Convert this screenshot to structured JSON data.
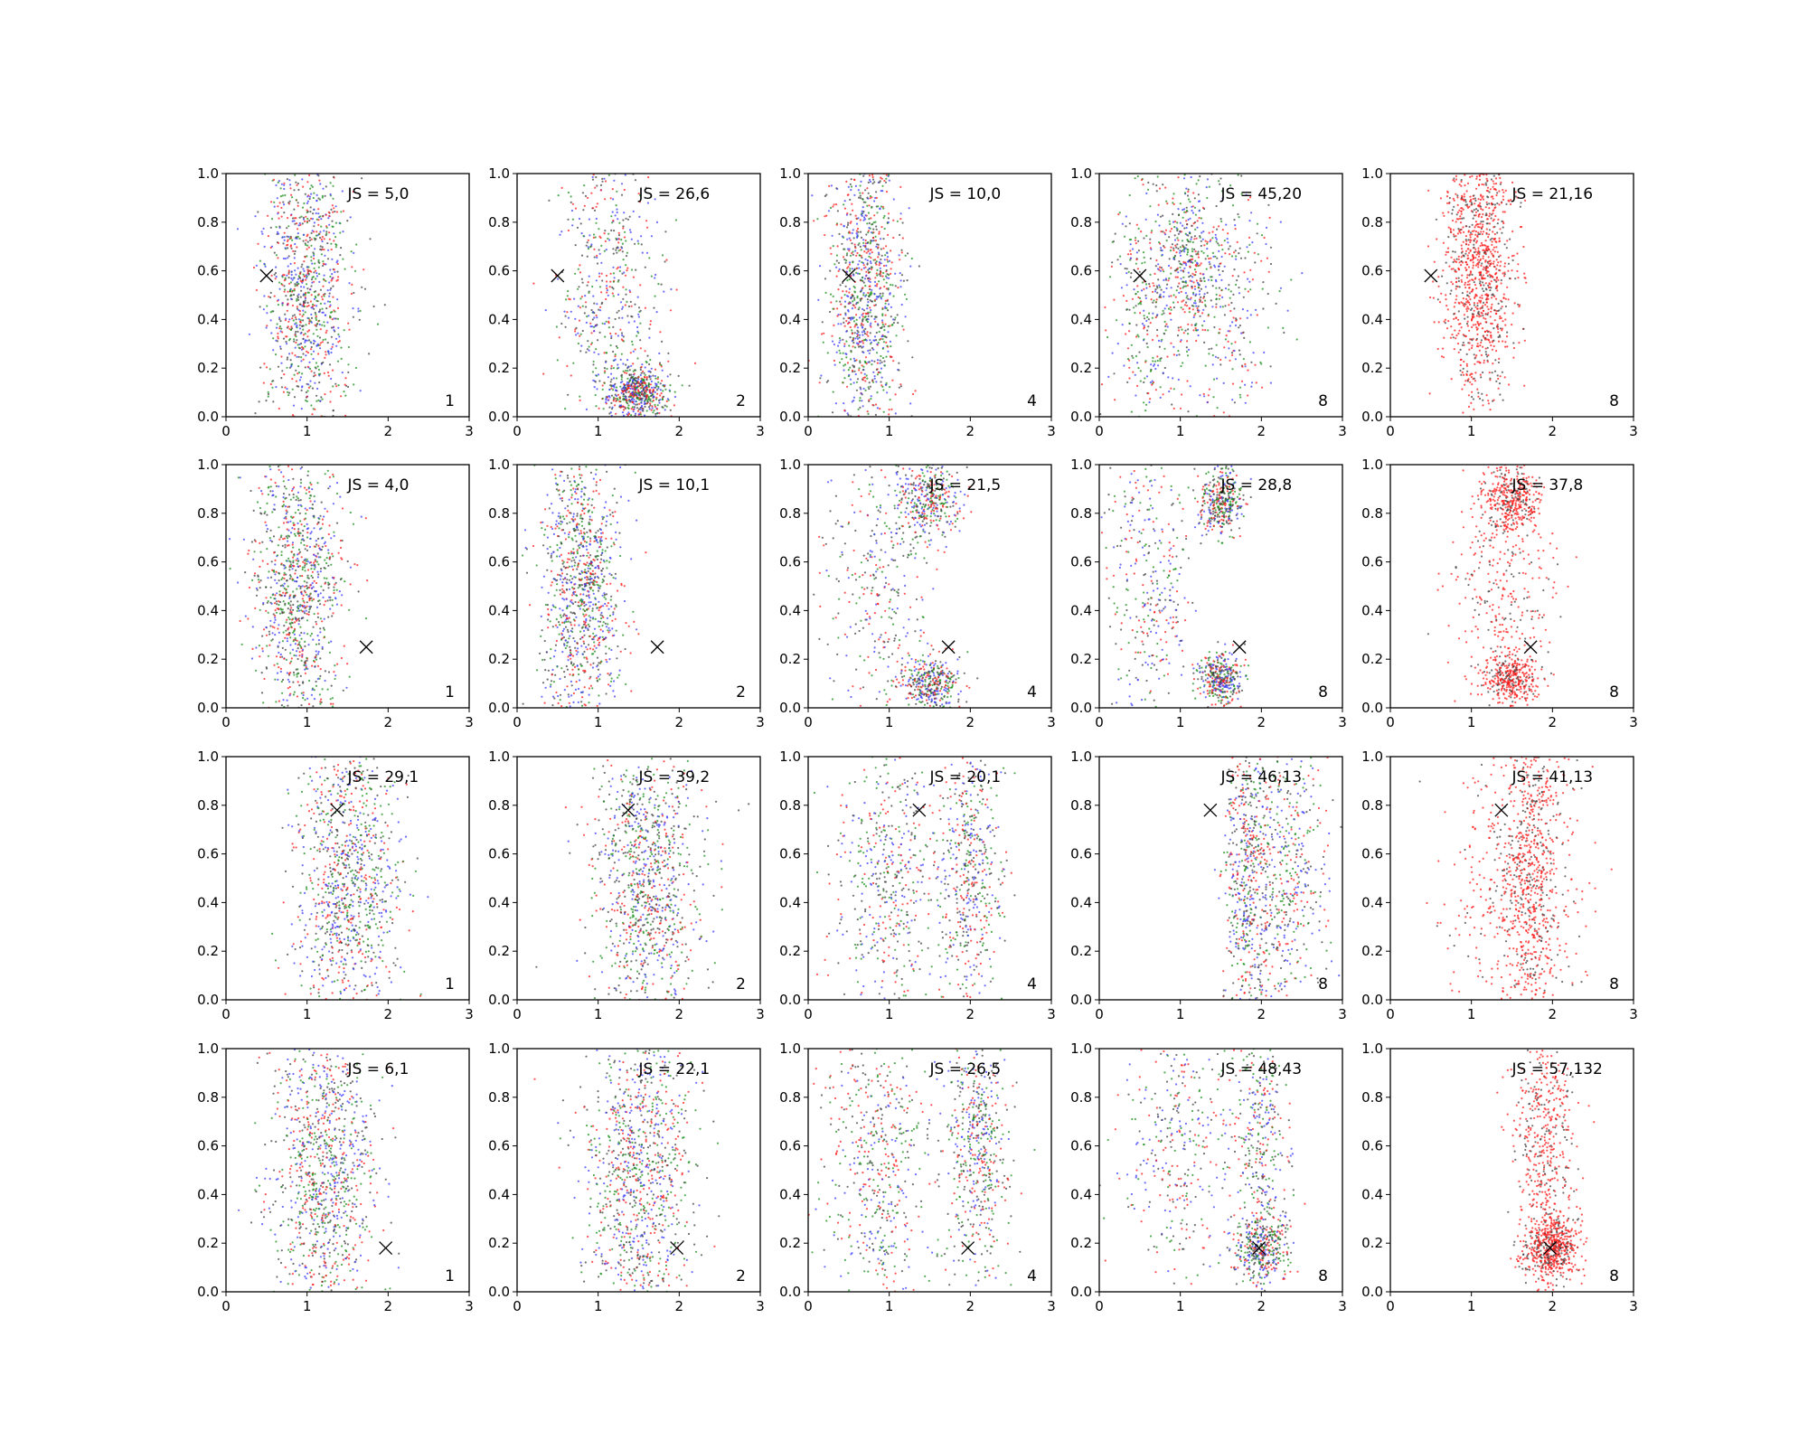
{
  "chart_data": {
    "type": "scatter",
    "layout": {
      "rows": 4,
      "cols": 5
    },
    "xlim": [
      0,
      3
    ],
    "ylim": [
      0,
      1
    ],
    "xticks": [
      "0",
      "1",
      "2",
      "3"
    ],
    "yticks": [
      "0.0",
      "0.2",
      "0.4",
      "0.6",
      "0.8",
      "1.0"
    ],
    "grid": false,
    "legend": "none",
    "colors": {
      "blue": "#3b3bff",
      "green": "#1a8f1a",
      "red": "#ff1a1a",
      "black": "#404040",
      "marker": "#000000"
    },
    "panels": [
      {
        "row": 0,
        "col": 0,
        "label": "JS = 5,0",
        "count": "1",
        "marker": [
          0.5,
          0.58
        ],
        "mix": [
          "blue",
          "green",
          "red",
          "black"
        ],
        "clusters": [
          {
            "cx": 1.0,
            "cy": 0.5,
            "sx": 0.5,
            "sy": 0.6
          }
        ]
      },
      {
        "row": 0,
        "col": 1,
        "label": "JS = 26,6",
        "count": "2",
        "marker": [
          0.5,
          0.58
        ],
        "mix": [
          "blue",
          "green",
          "red",
          "black"
        ],
        "clusters": [
          {
            "cx": 1.1,
            "cy": 0.55,
            "sx": 0.55,
            "sy": 0.6
          },
          {
            "cx": 1.5,
            "cy": 0.1,
            "sx": 0.35,
            "sy": 0.1
          }
        ]
      },
      {
        "row": 0,
        "col": 2,
        "label": "JS = 10,0",
        "count": "4",
        "marker": [
          0.5,
          0.58
        ],
        "mix": [
          "blue",
          "green",
          "red",
          "black"
        ],
        "clusters": [
          {
            "cx": 0.7,
            "cy": 0.5,
            "sx": 0.4,
            "sy": 0.6
          }
        ]
      },
      {
        "row": 0,
        "col": 3,
        "label": "JS = 45,20",
        "count": "8",
        "marker": [
          0.5,
          0.58
        ],
        "mix": [
          "blue",
          "green",
          "red",
          "black"
        ],
        "clusters": [
          {
            "cx": 0.6,
            "cy": 0.5,
            "sx": 0.4,
            "sy": 0.6
          },
          {
            "cx": 1.1,
            "cy": 0.65,
            "sx": 0.3,
            "sy": 0.35
          },
          {
            "cx": 1.6,
            "cy": 0.5,
            "sx": 0.6,
            "sy": 0.6
          }
        ]
      },
      {
        "row": 0,
        "col": 4,
        "label": "JS = 21,16",
        "count": "8",
        "marker": [
          0.5,
          0.58
        ],
        "mix": [
          "red",
          "red",
          "red",
          "black"
        ],
        "clusters": [
          {
            "cx": 1.1,
            "cy": 0.6,
            "sx": 0.4,
            "sy": 0.5
          }
        ]
      },
      {
        "row": 1,
        "col": 0,
        "label": "JS = 4,0",
        "count": "1",
        "marker": [
          1.73,
          0.25
        ],
        "mix": [
          "blue",
          "green",
          "red",
          "black"
        ],
        "clusters": [
          {
            "cx": 0.9,
            "cy": 0.5,
            "sx": 0.5,
            "sy": 0.6
          }
        ]
      },
      {
        "row": 1,
        "col": 1,
        "label": "JS = 10,1",
        "count": "2",
        "marker": [
          1.73,
          0.25
        ],
        "mix": [
          "blue",
          "green",
          "red",
          "black"
        ],
        "clusters": [
          {
            "cx": 0.8,
            "cy": 0.5,
            "sx": 0.45,
            "sy": 0.6
          }
        ]
      },
      {
        "row": 1,
        "col": 2,
        "label": "JS = 21,5",
        "count": "4",
        "marker": [
          1.73,
          0.25
        ],
        "mix": [
          "blue",
          "green",
          "red",
          "black"
        ],
        "clusters": [
          {
            "cx": 0.9,
            "cy": 0.5,
            "sx": 0.6,
            "sy": 0.6
          },
          {
            "cx": 1.5,
            "cy": 0.85,
            "sx": 0.35,
            "sy": 0.15
          },
          {
            "cx": 1.5,
            "cy": 0.1,
            "sx": 0.35,
            "sy": 0.1
          }
        ]
      },
      {
        "row": 1,
        "col": 3,
        "label": "JS = 28,8",
        "count": "8",
        "marker": [
          1.73,
          0.25
        ],
        "mix": [
          "blue",
          "green",
          "red",
          "black"
        ],
        "clusters": [
          {
            "cx": 0.6,
            "cy": 0.5,
            "sx": 0.5,
            "sy": 0.6
          },
          {
            "cx": 1.5,
            "cy": 0.85,
            "sx": 0.25,
            "sy": 0.12
          },
          {
            "cx": 1.5,
            "cy": 0.12,
            "sx": 0.25,
            "sy": 0.1
          }
        ]
      },
      {
        "row": 1,
        "col": 4,
        "label": "JS = 37,8",
        "count": "8",
        "marker": [
          1.73,
          0.25
        ],
        "mix": [
          "red",
          "red",
          "red",
          "black"
        ],
        "clusters": [
          {
            "cx": 1.5,
            "cy": 0.85,
            "sx": 0.3,
            "sy": 0.12
          },
          {
            "cx": 1.5,
            "cy": 0.12,
            "sx": 0.3,
            "sy": 0.1
          },
          {
            "cx": 1.4,
            "cy": 0.5,
            "sx": 0.6,
            "sy": 0.5
          }
        ]
      },
      {
        "row": 2,
        "col": 0,
        "label": "JS = 29,1",
        "count": "1",
        "marker": [
          1.37,
          0.78
        ],
        "mix": [
          "blue",
          "green",
          "red",
          "black"
        ],
        "clusters": [
          {
            "cx": 1.5,
            "cy": 0.5,
            "sx": 0.6,
            "sy": 0.6
          }
        ]
      },
      {
        "row": 2,
        "col": 1,
        "label": "JS = 39,2",
        "count": "2",
        "marker": [
          1.37,
          0.78
        ],
        "mix": [
          "blue",
          "green",
          "red",
          "black"
        ],
        "clusters": [
          {
            "cx": 1.6,
            "cy": 0.5,
            "sx": 0.6,
            "sy": 0.6
          }
        ]
      },
      {
        "row": 2,
        "col": 2,
        "label": "JS = 20,1",
        "count": "4",
        "marker": [
          1.37,
          0.78
        ],
        "mix": [
          "blue",
          "green",
          "red",
          "black"
        ],
        "clusters": [
          {
            "cx": 1.0,
            "cy": 0.5,
            "sx": 0.6,
            "sy": 0.6
          },
          {
            "cx": 2.0,
            "cy": 0.5,
            "sx": 0.35,
            "sy": 0.6
          }
        ]
      },
      {
        "row": 2,
        "col": 3,
        "label": "JS = 46,13",
        "count": "8",
        "marker": [
          1.37,
          0.78
        ],
        "mix": [
          "blue",
          "green",
          "red",
          "black"
        ],
        "clusters": [
          {
            "cx": 1.8,
            "cy": 0.5,
            "sx": 0.25,
            "sy": 0.6
          },
          {
            "cx": 2.3,
            "cy": 0.5,
            "sx": 0.5,
            "sy": 0.6
          }
        ]
      },
      {
        "row": 2,
        "col": 4,
        "label": "JS = 41,13",
        "count": "8",
        "marker": [
          1.37,
          0.78
        ],
        "mix": [
          "red",
          "red",
          "red",
          "black"
        ],
        "clusters": [
          {
            "cx": 1.75,
            "cy": 0.5,
            "sx": 0.3,
            "sy": 0.6
          },
          {
            "cx": 1.6,
            "cy": 0.5,
            "sx": 0.7,
            "sy": 0.6
          }
        ]
      },
      {
        "row": 3,
        "col": 0,
        "label": "JS = 6,1",
        "count": "1",
        "marker": [
          1.97,
          0.18
        ],
        "mix": [
          "blue",
          "green",
          "red",
          "black"
        ],
        "clusters": [
          {
            "cx": 1.2,
            "cy": 0.5,
            "sx": 0.6,
            "sy": 0.6
          }
        ]
      },
      {
        "row": 3,
        "col": 1,
        "label": "JS = 22,1",
        "count": "2",
        "marker": [
          1.97,
          0.18
        ],
        "mix": [
          "blue",
          "green",
          "red",
          "black"
        ],
        "clusters": [
          {
            "cx": 1.5,
            "cy": 0.5,
            "sx": 0.6,
            "sy": 0.6
          }
        ]
      },
      {
        "row": 3,
        "col": 2,
        "label": "JS = 26,5",
        "count": "4",
        "marker": [
          1.97,
          0.18
        ],
        "mix": [
          "blue",
          "green",
          "red",
          "black"
        ],
        "clusters": [
          {
            "cx": 0.9,
            "cy": 0.5,
            "sx": 0.6,
            "sy": 0.6
          },
          {
            "cx": 2.1,
            "cy": 0.6,
            "sx": 0.35,
            "sy": 0.5
          }
        ]
      },
      {
        "row": 3,
        "col": 3,
        "label": "JS = 48,43",
        "count": "8",
        "marker": [
          1.97,
          0.18
        ],
        "mix": [
          "blue",
          "green",
          "red",
          "black"
        ],
        "clusters": [
          {
            "cx": 1.0,
            "cy": 0.6,
            "sx": 0.6,
            "sy": 0.5
          },
          {
            "cx": 2.0,
            "cy": 0.18,
            "sx": 0.3,
            "sy": 0.12
          },
          {
            "cx": 2.0,
            "cy": 0.6,
            "sx": 0.3,
            "sy": 0.5
          }
        ]
      },
      {
        "row": 3,
        "col": 4,
        "label": "JS = 57,132",
        "count": "8",
        "marker": [
          1.97,
          0.18
        ],
        "mix": [
          "red",
          "red",
          "red",
          "black"
        ],
        "clusters": [
          {
            "cx": 2.0,
            "cy": 0.18,
            "sx": 0.3,
            "sy": 0.12
          },
          {
            "cx": 1.9,
            "cy": 0.6,
            "sx": 0.35,
            "sy": 0.5
          }
        ]
      }
    ]
  }
}
